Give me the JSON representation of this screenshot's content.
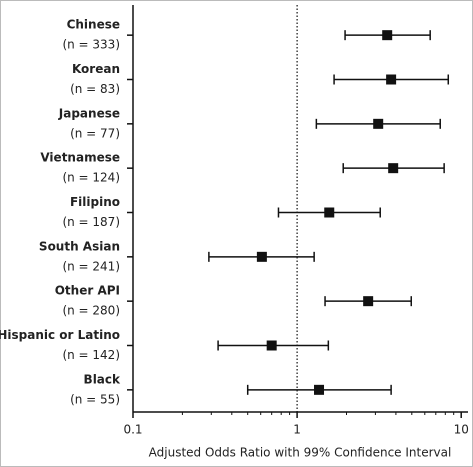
{
  "chart_data": {
    "type": "forest",
    "x_label": "Adjusted Odds Ratio with 99% Confidence Interval",
    "categories": [
      "Chinese",
      "Korean",
      "Japanese",
      "Vietnamese",
      "Filipino",
      "South Asian",
      "Other API",
      "Hispanic or Latino",
      "Black"
    ],
    "notes": [
      "(n = 333)",
      "(n = 83)",
      "(n = 77)",
      "(n = 124)",
      "(n = 187)",
      "(n = 241)",
      "(n = 280)",
      "(n = 142)",
      "(n = 55)"
    ],
    "values": [
      3.54,
      3.74,
      3.12,
      3.85,
      1.57,
      0.61,
      2.71,
      0.7,
      1.36
    ],
    "ci_lower": [
      1.96,
      1.68,
      1.31,
      1.91,
      0.77,
      0.29,
      1.48,
      0.33,
      0.5
    ],
    "ci_upper": [
      6.47,
      8.34,
      7.45,
      7.87,
      3.21,
      1.27,
      4.96,
      1.55,
      3.74
    ],
    "xlim": [
      0.1,
      11
    ],
    "xticks": [
      0.1,
      1,
      10
    ],
    "log_x": true,
    "reference_x": 1,
    "color": "#111111"
  }
}
